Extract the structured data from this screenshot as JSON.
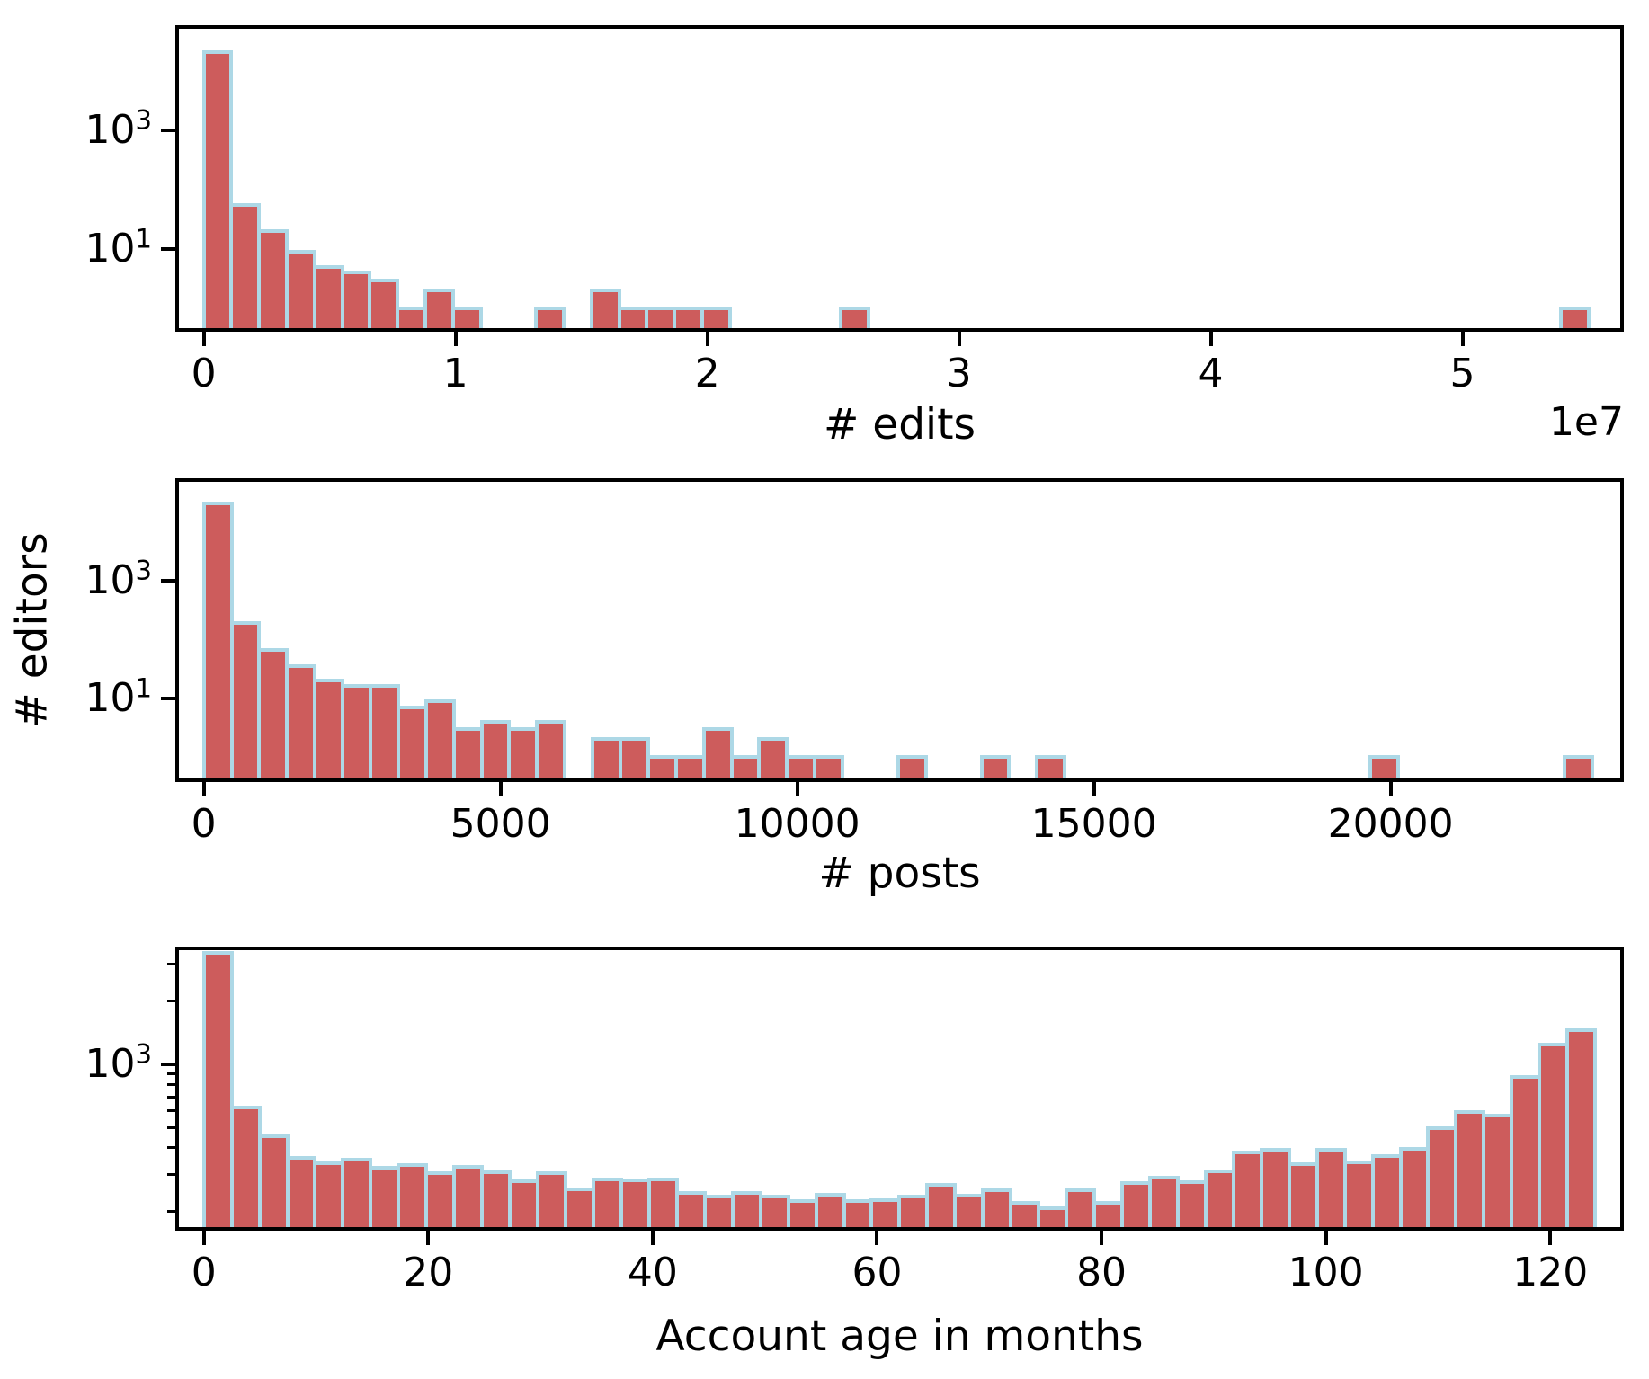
{
  "figure": {
    "background": "#ffffff",
    "shared_ylabel": "# editors",
    "bar_fill_color": "#cd5c5c",
    "bar_edge_color": "#add8e6",
    "spine_color": "#000000",
    "text_color": "#000000"
  },
  "chart_data": [
    {
      "type": "bar",
      "title": "",
      "xlabel": "# edits",
      "ylabel": "# editors",
      "offset_text": "1e7",
      "grid": false,
      "legend": false,
      "yscale": "log",
      "bin_width": 1100000,
      "bin_start": 0,
      "xlim": [
        -1130000,
        56410000
      ],
      "ylim": [
        0.404,
        59800
      ],
      "x_ticks": [
        {
          "value": 0,
          "label": "0"
        },
        {
          "value": 10000000,
          "label": "1"
        },
        {
          "value": 20000000,
          "label": "2"
        },
        {
          "value": 30000000,
          "label": "3"
        },
        {
          "value": 40000000,
          "label": "4"
        },
        {
          "value": 50000000,
          "label": "5"
        }
      ],
      "y_major_ticks": [
        {
          "value": 1000,
          "base": "10",
          "exp": "3"
        },
        {
          "value": 10,
          "base": "10",
          "exp": "1"
        }
      ],
      "y_minor_ticks": [],
      "counts": [
        21000,
        55,
        20,
        9,
        5,
        4,
        3,
        1,
        2,
        1,
        0,
        0,
        1,
        0,
        2,
        1,
        1,
        1,
        1,
        0,
        0,
        0,
        0,
        1,
        0,
        0,
        0,
        0,
        0,
        0,
        0,
        0,
        0,
        0,
        0,
        0,
        0,
        0,
        0,
        0,
        0,
        0,
        0,
        0,
        0,
        0,
        0,
        0,
        0,
        1
      ]
    },
    {
      "type": "bar",
      "title": "",
      "xlabel": "# posts",
      "ylabel": "# editors",
      "offset_text": "",
      "grid": false,
      "legend": false,
      "yscale": "log",
      "bin_width": 468,
      "bin_start": 0,
      "xlim": [
        -480,
        23930
      ],
      "ylim": [
        0.3726,
        55800
      ],
      "x_ticks": [
        {
          "value": 0,
          "label": "0"
        },
        {
          "value": 5000,
          "label": "5000"
        },
        {
          "value": 10000,
          "label": "10000"
        },
        {
          "value": 15000,
          "label": "15000"
        },
        {
          "value": 20000,
          "label": "20000"
        }
      ],
      "y_major_ticks": [
        {
          "value": 1000,
          "base": "10",
          "exp": "3"
        },
        {
          "value": 10,
          "base": "10",
          "exp": "1"
        }
      ],
      "y_minor_ticks": [],
      "counts": [
        21000,
        190,
        67,
        35,
        20,
        16,
        16,
        7,
        9,
        3,
        4,
        3,
        4,
        0,
        2,
        2,
        1,
        1,
        3,
        1,
        2,
        1,
        1,
        0,
        0,
        1,
        0,
        0,
        1,
        0,
        1,
        0,
        0,
        0,
        0,
        0,
        0,
        0,
        0,
        0,
        0,
        0,
        1,
        0,
        0,
        0,
        0,
        0,
        0,
        1
      ]
    },
    {
      "type": "bar",
      "title": "",
      "xlabel": "Account age in months",
      "ylabel": "# editors",
      "offset_text": "",
      "grid": false,
      "legend": false,
      "yscale": "log",
      "bin_width": 2.48,
      "bin_start": 0,
      "xlim": [
        -2.54,
        126.55
      ],
      "ylim": [
        161.5,
        3630
      ],
      "x_ticks": [
        {
          "value": 0,
          "label": "0"
        },
        {
          "value": 20,
          "label": "20"
        },
        {
          "value": 40,
          "label": "40"
        },
        {
          "value": 60,
          "label": "60"
        },
        {
          "value": 80,
          "label": "80"
        },
        {
          "value": 100,
          "label": "100"
        },
        {
          "value": 120,
          "label": "120"
        }
      ],
      "y_major_ticks": [
        {
          "value": 1000,
          "base": "10",
          "exp": "3"
        }
      ],
      "y_minor_ticks": [
        200,
        300,
        400,
        500,
        600,
        700,
        800,
        900,
        2000,
        3000
      ],
      "counts": [
        3400,
        625,
        454,
        358,
        338,
        352,
        321,
        333,
        304,
        325,
        307,
        277,
        302,
        255,
        282,
        280,
        282,
        245,
        235,
        244,
        235,
        224,
        239,
        224,
        226,
        234,
        268,
        238,
        252,
        219,
        206,
        252,
        220,
        271,
        290,
        275,
        309,
        382,
        391,
        336,
        391,
        343,
        364,
        395,
        497,
        592,
        572,
        869,
        1245,
        1452
      ]
    }
  ]
}
